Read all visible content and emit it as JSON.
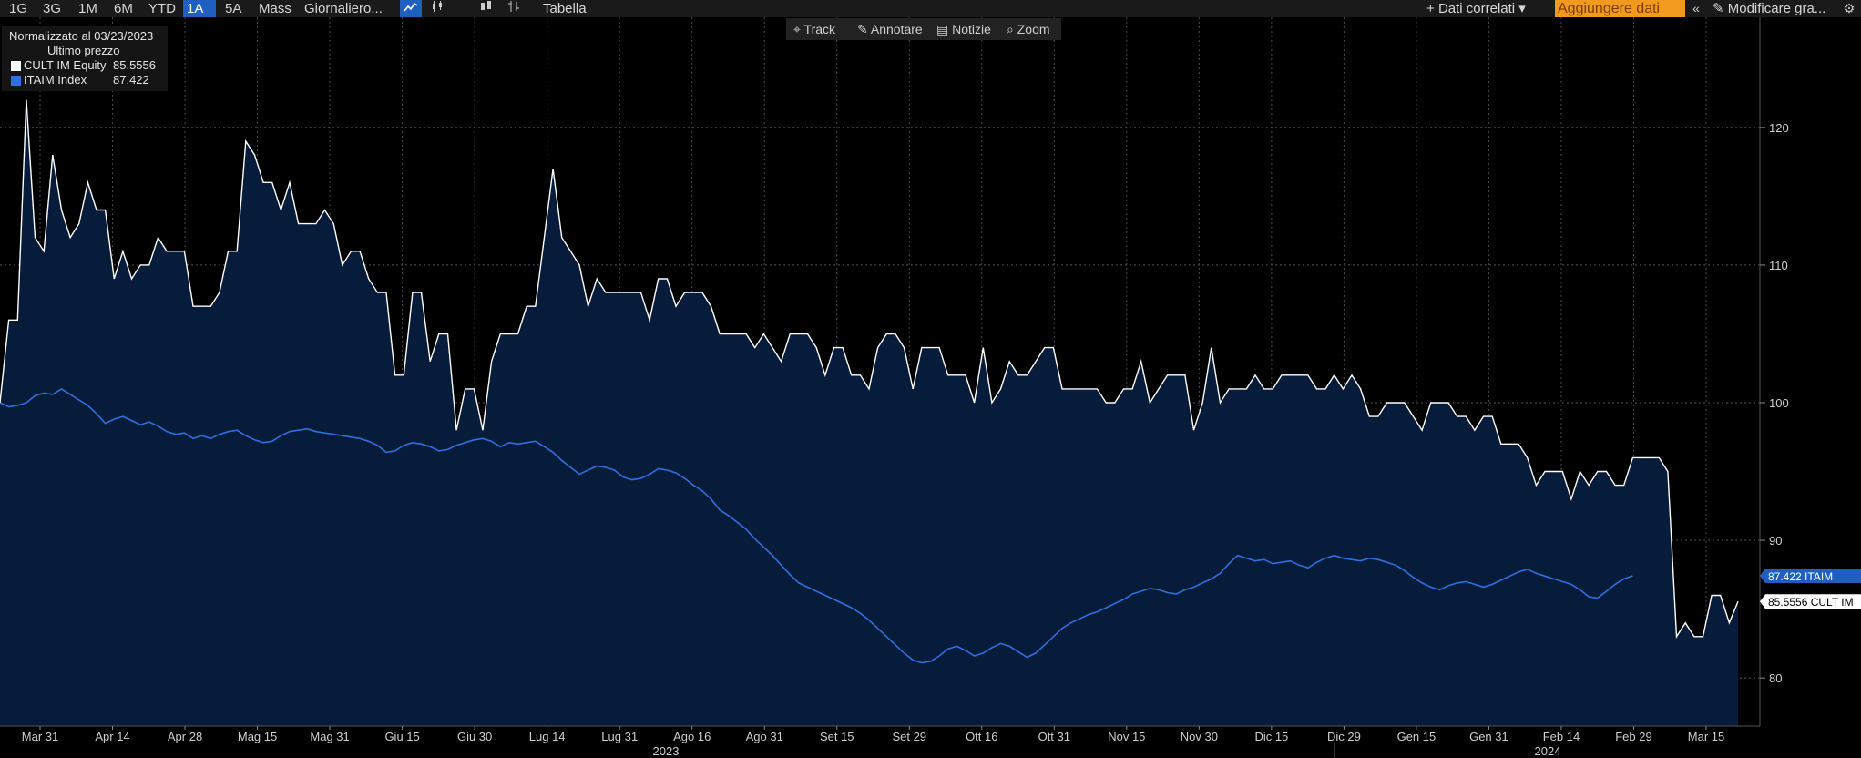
{
  "toolbar": {
    "periods": [
      "1G",
      "3G",
      "1M",
      "6M",
      "YTD",
      "1A",
      "5A",
      "Mass"
    ],
    "active_period": "1A",
    "frequency": "Giornaliero...",
    "table": "Tabella",
    "related": "Dati correlati",
    "add_data": "Aggiungere dati",
    "edit": "Modificare gra...",
    "icons": [
      "line-chart-icon",
      "candlestick-icon",
      "ohlc-icon",
      "bar-icon",
      "collapse-icon",
      "gear-icon"
    ]
  },
  "subtools": {
    "track": "Track",
    "annotate": "Annotare",
    "news": "Notizie",
    "zoom": "Zoom"
  },
  "legend": {
    "header": "Normalizzato al 03/23/2023",
    "subheader": "Ultimo prezzo",
    "items": [
      {
        "name": "CULT IM Equity",
        "value": "85.5556",
        "color": "#ffffff"
      },
      {
        "name": "ITAIM Index",
        "value": "87.422",
        "color": "#2f6fe0"
      }
    ]
  },
  "chart_data": {
    "type": "area",
    "ylim": [
      76.5,
      128
    ],
    "yticks": [
      80,
      90,
      100,
      110,
      120
    ],
    "x_ticks": [
      "Mar 31",
      "Apr 14",
      "Apr 28",
      "Mag 15",
      "Mag 31",
      "Giu 15",
      "Giu 30",
      "Lug 14",
      "Lug 31",
      "Ago 16",
      "Ago 31",
      "Set 15",
      "Set 29",
      "Ott 16",
      "Ott 31",
      "Nov 15",
      "Nov 30",
      "Dic 15",
      "Dic 29",
      "Gen 15",
      "Gen 31",
      "Feb 14",
      "Feb 29",
      "Mar 15"
    ],
    "years": [
      "2023",
      "2024"
    ],
    "price_tags": [
      {
        "text": "87.422  ITAIM",
        "value": 87.422,
        "bg": "#1f5fbf",
        "fg": "#ffffff"
      },
      {
        "text": "85.5556 CULT IM",
        "value": 85.5556,
        "bg": "#ffffff",
        "fg": "#000000"
      }
    ],
    "series": [
      {
        "name": "CULT IM Equity",
        "color": "#ffffff",
        "values": [
          100,
          106,
          106,
          122,
          112,
          111,
          118,
          114,
          112,
          113,
          116,
          114,
          114,
          109,
          111,
          109,
          110,
          110,
          112,
          111,
          111,
          111,
          107,
          107,
          107,
          108,
          111,
          111,
          119,
          118,
          116,
          116,
          114,
          116,
          113,
          113,
          113,
          114,
          113,
          110,
          111,
          111,
          109,
          108,
          108,
          102,
          102,
          108,
          108,
          103,
          105,
          105,
          98,
          101,
          101,
          98,
          103,
          105,
          105,
          105,
          107,
          107,
          112,
          117,
          112,
          111,
          110,
          107,
          109,
          108,
          108,
          108,
          108,
          108,
          106,
          109,
          109,
          107,
          108,
          108,
          108,
          107,
          105,
          105,
          105,
          105,
          104,
          105,
          104,
          103,
          105,
          105,
          105,
          104,
          102,
          104,
          104,
          102,
          102,
          101,
          104,
          105,
          105,
          104,
          101,
          104,
          104,
          104,
          102,
          102,
          102,
          100,
          104,
          100,
          101,
          103,
          102,
          102,
          103,
          104,
          104,
          101,
          101,
          101,
          101,
          101,
          100,
          100,
          101,
          101,
          103,
          100,
          101,
          102,
          102,
          102,
          98,
          100,
          104,
          100,
          101,
          101,
          101,
          102,
          101,
          101,
          102,
          102,
          102,
          102,
          101,
          101,
          102,
          101,
          102,
          101,
          99,
          99,
          100,
          100,
          100,
          99,
          98,
          100,
          100,
          100,
          99,
          99,
          98,
          99,
          99,
          97,
          97,
          97,
          96,
          94,
          95,
          95,
          95,
          93,
          95,
          94,
          95,
          95,
          94,
          94,
          96,
          96,
          96,
          96,
          95,
          83,
          84,
          83,
          83,
          86,
          86,
          84,
          85.5556
        ]
      },
      {
        "name": "ITAIM Index",
        "color": "#2f6fe0",
        "values": [
          100,
          99.7,
          99.8,
          100,
          100.5,
          100.7,
          100.6,
          101,
          100.6,
          100.2,
          99.8,
          99.2,
          98.5,
          98.8,
          99,
          98.7,
          98.4,
          98.6,
          98.3,
          97.9,
          97.7,
          97.8,
          97.4,
          97.6,
          97.4,
          97.7,
          97.9,
          98,
          97.6,
          97.3,
          97.1,
          97.2,
          97.6,
          97.9,
          98,
          98.1,
          97.9,
          97.8,
          97.7,
          97.6,
          97.5,
          97.4,
          97.2,
          96.9,
          96.4,
          96.5,
          96.9,
          97.1,
          97,
          96.8,
          96.5,
          96.6,
          96.9,
          97.1,
          97.3,
          97.4,
          97.2,
          96.8,
          97.1,
          97,
          97.1,
          97.2,
          96.8,
          96.4,
          95.8,
          95.3,
          94.8,
          95.1,
          95.4,
          95.3,
          95.1,
          94.6,
          94.4,
          94.5,
          94.8,
          95.2,
          95.1,
          94.9,
          94.5,
          94,
          93.6,
          93,
          92.2,
          91.8,
          91.3,
          90.8,
          90.1,
          89.5,
          88.9,
          88.2,
          87.5,
          86.9,
          86.6,
          86.3,
          86,
          85.7,
          85.4,
          85.1,
          84.7,
          84.2,
          83.6,
          83,
          82.4,
          81.8,
          81.3,
          81.1,
          81.2,
          81.6,
          82.1,
          82.3,
          82,
          81.6,
          81.8,
          82.2,
          82.5,
          82.3,
          81.9,
          81.5,
          81.8,
          82.4,
          83,
          83.6,
          84,
          84.3,
          84.6,
          84.8,
          85.1,
          85.4,
          85.7,
          86.1,
          86.3,
          86.5,
          86.4,
          86.2,
          86.1,
          86.4,
          86.6,
          86.9,
          87.2,
          87.6,
          88.3,
          88.9,
          88.7,
          88.5,
          88.6,
          88.3,
          88.4,
          88.5,
          88.2,
          88,
          88.4,
          88.7,
          88.9,
          88.7,
          88.6,
          88.5,
          88.7,
          88.6,
          88.4,
          88.2,
          87.8,
          87.3,
          86.9,
          86.6,
          86.4,
          86.7,
          86.9,
          87,
          86.8,
          86.6,
          86.8,
          87.1,
          87.4,
          87.7,
          87.9,
          87.6,
          87.4,
          87.2,
          87,
          86.8,
          86.4,
          85.9,
          85.8,
          86.3,
          86.8,
          87.2,
          87.422
        ]
      }
    ]
  }
}
